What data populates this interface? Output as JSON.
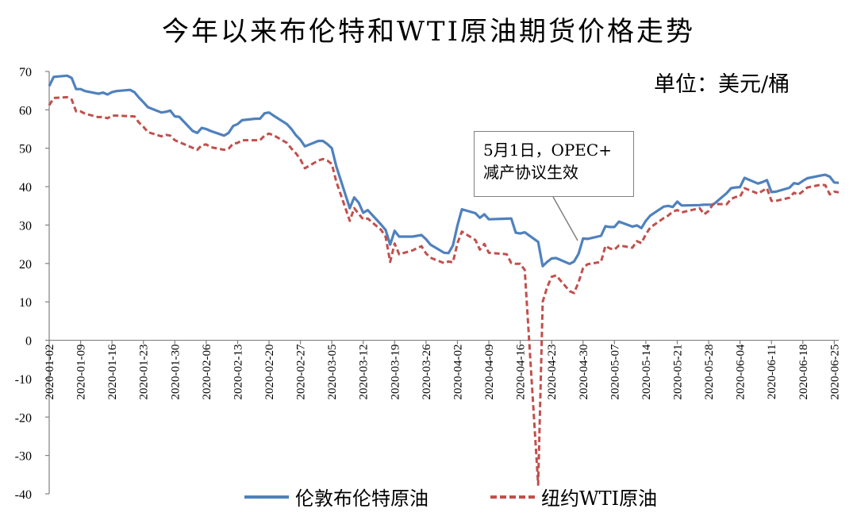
{
  "title": "今年以来布伦特和WTI原油期货价格走势",
  "unit_label": "单位：美元/桶",
  "annotation": {
    "line1": "5月1日，OPEC+",
    "line2": "减产协议生效"
  },
  "colors": {
    "brent": "#4f81bd",
    "wti": "#c0504d",
    "axis": "#808080"
  },
  "legend": {
    "brent": "伦敦布伦特原油",
    "wti": "纽约WTI原油"
  },
  "chart_data": {
    "type": "line",
    "title": "今年以来布伦特和WTI原油期货价格走势",
    "ylabel": "单位：美元/桶",
    "ylim": [
      -40,
      70
    ],
    "y_ticks": [
      -40,
      -30,
      -20,
      -10,
      0,
      10,
      20,
      30,
      40,
      50,
      60,
      70
    ],
    "x_ticks": [
      "2020-01-02",
      "2020-01-09",
      "2020-01-16",
      "2020-01-23",
      "2020-01-30",
      "2020-02-06",
      "2020-02-13",
      "2020-02-20",
      "2020-02-27",
      "2020-03-05",
      "2020-03-12",
      "2020-03-19",
      "2020-03-26",
      "2020-04-02",
      "2020-04-09",
      "2020-04-16",
      "2020-04-23",
      "2020-04-30",
      "2020-05-07",
      "2020-05-14",
      "2020-05-21",
      "2020-05-28",
      "2020-06-04",
      "2020-06-11",
      "2020-06-18",
      "2020-06-25"
    ],
    "x_start": "2020-01-02",
    "x_end": "2020-06-26",
    "series": [
      {
        "name": "伦敦布伦特原油",
        "style": "solid",
        "x": [
          "2020-01-02",
          "2020-01-03",
          "2020-01-06",
          "2020-01-07",
          "2020-01-08",
          "2020-01-09",
          "2020-01-10",
          "2020-01-13",
          "2020-01-14",
          "2020-01-15",
          "2020-01-16",
          "2020-01-17",
          "2020-01-20",
          "2020-01-21",
          "2020-01-22",
          "2020-01-23",
          "2020-01-24",
          "2020-01-27",
          "2020-01-28",
          "2020-01-29",
          "2020-01-30",
          "2020-01-31",
          "2020-02-03",
          "2020-02-04",
          "2020-02-05",
          "2020-02-06",
          "2020-02-07",
          "2020-02-10",
          "2020-02-11",
          "2020-02-12",
          "2020-02-13",
          "2020-02-14",
          "2020-02-17",
          "2020-02-18",
          "2020-02-19",
          "2020-02-20",
          "2020-02-21",
          "2020-02-24",
          "2020-02-25",
          "2020-02-26",
          "2020-02-27",
          "2020-02-28",
          "2020-03-02",
          "2020-03-03",
          "2020-03-04",
          "2020-03-05",
          "2020-03-06",
          "2020-03-09",
          "2020-03-10",
          "2020-03-11",
          "2020-03-12",
          "2020-03-13",
          "2020-03-16",
          "2020-03-17",
          "2020-03-18",
          "2020-03-19",
          "2020-03-20",
          "2020-03-23",
          "2020-03-24",
          "2020-03-25",
          "2020-03-26",
          "2020-03-27",
          "2020-03-30",
          "2020-03-31",
          "2020-04-01",
          "2020-04-02",
          "2020-04-03",
          "2020-04-06",
          "2020-04-07",
          "2020-04-08",
          "2020-04-09",
          "2020-04-14",
          "2020-04-15",
          "2020-04-16",
          "2020-04-17",
          "2020-04-20",
          "2020-04-21",
          "2020-04-22",
          "2020-04-23",
          "2020-04-24",
          "2020-04-27",
          "2020-04-28",
          "2020-04-29",
          "2020-04-30",
          "2020-05-01",
          "2020-05-04",
          "2020-05-05",
          "2020-05-06",
          "2020-05-07",
          "2020-05-08",
          "2020-05-11",
          "2020-05-12",
          "2020-05-13",
          "2020-05-14",
          "2020-05-15",
          "2020-05-18",
          "2020-05-19",
          "2020-05-20",
          "2020-05-21",
          "2020-05-22",
          "2020-05-26",
          "2020-05-27",
          "2020-05-28",
          "2020-05-29",
          "2020-06-01",
          "2020-06-02",
          "2020-06-03",
          "2020-06-04",
          "2020-06-05",
          "2020-06-08",
          "2020-06-09",
          "2020-06-10",
          "2020-06-11",
          "2020-06-12",
          "2020-06-15",
          "2020-06-16",
          "2020-06-17",
          "2020-06-18",
          "2020-06-19",
          "2020-06-22",
          "2020-06-23",
          "2020-06-24",
          "2020-06-25",
          "2020-06-26"
        ],
        "values": [
          66.2,
          68.6,
          68.9,
          68.3,
          65.4,
          65.4,
          64.9,
          64.2,
          64.5,
          64.0,
          64.6,
          64.9,
          65.2,
          64.6,
          63.2,
          62.0,
          60.7,
          59.3,
          59.5,
          59.8,
          58.3,
          58.2,
          54.5,
          54.0,
          55.3,
          55.0,
          54.5,
          53.3,
          54.0,
          55.8,
          56.3,
          57.3,
          57.7,
          57.7,
          59.1,
          59.3,
          58.5,
          56.3,
          55.0,
          53.4,
          52.2,
          50.5,
          51.9,
          51.9,
          51.1,
          50.0,
          45.3,
          34.4,
          37.2,
          35.8,
          33.2,
          33.9,
          30.1,
          28.7,
          24.9,
          28.5,
          27.0,
          27.0,
          27.2,
          27.4,
          26.3,
          24.9,
          22.8,
          22.7,
          24.7,
          29.9,
          34.1,
          33.1,
          31.9,
          32.8,
          31.5,
          31.7,
          28.0,
          27.8,
          28.1,
          25.6,
          19.3,
          20.4,
          21.3,
          21.4,
          19.9,
          20.5,
          22.5,
          26.5,
          26.4,
          27.2,
          29.7,
          29.5,
          29.5,
          30.9,
          29.6,
          29.9,
          29.2,
          31.1,
          32.5,
          34.8,
          35.0,
          34.7,
          36.1,
          35.1,
          35.2,
          35.3,
          35.3,
          35.3,
          38.3,
          39.6,
          39.8,
          39.9,
          42.3,
          40.8,
          41.2,
          41.7,
          38.6,
          38.7,
          39.7,
          40.9,
          40.7,
          41.5,
          42.2,
          42.9,
          43.1,
          42.6,
          41.1,
          41.0
        ]
      },
      {
        "name": "纽约WTI原油",
        "style": "dashed",
        "x": [
          "2020-01-02",
          "2020-01-03",
          "2020-01-06",
          "2020-01-07",
          "2020-01-08",
          "2020-01-09",
          "2020-01-10",
          "2020-01-13",
          "2020-01-14",
          "2020-01-15",
          "2020-01-16",
          "2020-01-17",
          "2020-01-21",
          "2020-01-22",
          "2020-01-23",
          "2020-01-24",
          "2020-01-27",
          "2020-01-28",
          "2020-01-29",
          "2020-01-30",
          "2020-01-31",
          "2020-02-03",
          "2020-02-04",
          "2020-02-05",
          "2020-02-06",
          "2020-02-07",
          "2020-02-10",
          "2020-02-11",
          "2020-02-12",
          "2020-02-13",
          "2020-02-14",
          "2020-02-18",
          "2020-02-19",
          "2020-02-20",
          "2020-02-21",
          "2020-02-24",
          "2020-02-25",
          "2020-02-26",
          "2020-02-27",
          "2020-02-28",
          "2020-03-02",
          "2020-03-03",
          "2020-03-04",
          "2020-03-05",
          "2020-03-06",
          "2020-03-09",
          "2020-03-10",
          "2020-03-11",
          "2020-03-12",
          "2020-03-13",
          "2020-03-16",
          "2020-03-17",
          "2020-03-18",
          "2020-03-19",
          "2020-03-20",
          "2020-03-23",
          "2020-03-24",
          "2020-03-25",
          "2020-03-26",
          "2020-03-27",
          "2020-03-30",
          "2020-03-31",
          "2020-04-01",
          "2020-04-02",
          "2020-04-03",
          "2020-04-06",
          "2020-04-07",
          "2020-04-08",
          "2020-04-09",
          "2020-04-13",
          "2020-04-14",
          "2020-04-15",
          "2020-04-16",
          "2020-04-17",
          "2020-04-20",
          "2020-04-21",
          "2020-04-22",
          "2020-04-23",
          "2020-04-24",
          "2020-04-27",
          "2020-04-28",
          "2020-04-29",
          "2020-04-30",
          "2020-05-01",
          "2020-05-04",
          "2020-05-05",
          "2020-05-06",
          "2020-05-07",
          "2020-05-08",
          "2020-05-11",
          "2020-05-12",
          "2020-05-13",
          "2020-05-14",
          "2020-05-15",
          "2020-05-18",
          "2020-05-19",
          "2020-05-20",
          "2020-05-21",
          "2020-05-22",
          "2020-05-26",
          "2020-05-27",
          "2020-05-28",
          "2020-05-29",
          "2020-06-01",
          "2020-06-02",
          "2020-06-03",
          "2020-06-04",
          "2020-06-05",
          "2020-06-08",
          "2020-06-09",
          "2020-06-10",
          "2020-06-11",
          "2020-06-12",
          "2020-06-15",
          "2020-06-16",
          "2020-06-17",
          "2020-06-18",
          "2020-06-19",
          "2020-06-22",
          "2020-06-23",
          "2020-06-24",
          "2020-06-25",
          "2020-06-26"
        ],
        "values": [
          61.2,
          63.1,
          63.3,
          62.7,
          59.6,
          59.6,
          59.0,
          58.1,
          58.2,
          57.8,
          58.5,
          58.5,
          58.3,
          56.7,
          55.6,
          54.2,
          53.1,
          53.5,
          53.3,
          52.1,
          51.6,
          50.1,
          49.6,
          50.8,
          51.0,
          50.3,
          49.6,
          49.9,
          51.2,
          51.4,
          52.1,
          52.1,
          53.3,
          53.8,
          53.4,
          51.4,
          49.9,
          48.7,
          47.1,
          44.8,
          46.8,
          47.2,
          46.8,
          45.9,
          41.3,
          31.1,
          34.4,
          32.9,
          31.5,
          31.7,
          28.7,
          26.9,
          20.4,
          25.2,
          22.4,
          23.4,
          24.0,
          24.5,
          22.6,
          21.5,
          20.1,
          20.5,
          20.3,
          25.3,
          28.3,
          26.1,
          23.6,
          25.1,
          22.8,
          22.4,
          20.1,
          19.9,
          19.9,
          18.3,
          -37.6,
          10.0,
          13.8,
          16.5,
          16.9,
          12.8,
          12.3,
          15.1,
          18.8,
          19.8,
          20.4,
          24.6,
          23.9,
          23.6,
          24.7,
          24.1,
          25.8,
          25.3,
          27.6,
          29.4,
          31.8,
          32.5,
          33.5,
          33.9,
          33.3,
          34.4,
          32.8,
          33.7,
          35.5,
          35.4,
          36.8,
          37.3,
          37.4,
          39.6,
          38.2,
          38.9,
          39.6,
          36.3,
          36.3,
          37.1,
          38.4,
          37.9,
          38.8,
          39.8,
          40.5,
          40.4,
          38.0,
          38.7,
          38.5
        ]
      }
    ]
  }
}
